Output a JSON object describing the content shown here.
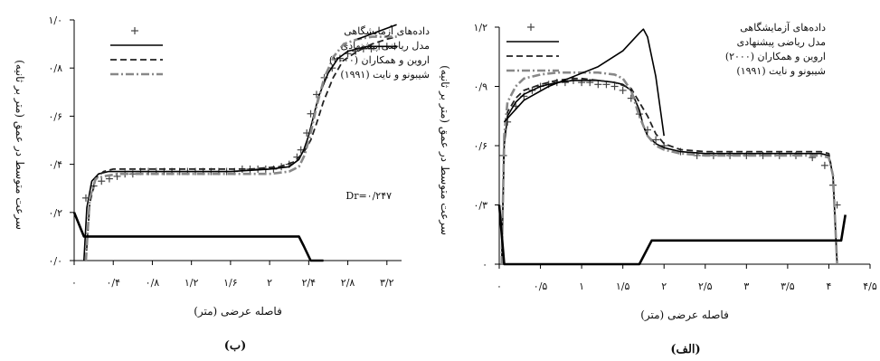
{
  "chart_data": [
    {
      "panel_label": "(ب)",
      "type": "line",
      "xlabel": "فاصله عرضی (متر)",
      "ylabel": "سرعت متوسط در عمق (متر بر ثانیه)",
      "xlim": [
        0,
        3.35
      ],
      "ylim": [
        0,
        1.0
      ],
      "x_ticks": [
        0,
        0.4,
        0.8,
        1.2,
        1.6,
        2.0,
        2.4,
        2.8,
        3.2
      ],
      "x_tick_labels": [
        "۰",
        "۰/۴",
        "۰/۸",
        "۱/۲",
        "۱/۶",
        "۲",
        "۲/۴",
        "۲/۸",
        "۳/۲"
      ],
      "y_ticks": [
        0,
        0.2,
        0.4,
        0.6,
        0.8,
        1.0
      ],
      "y_tick_labels": [
        "۰/۰",
        "۰/۲",
        "۰/۴",
        "۰/۶",
        "۰/۸",
        "۱/۰"
      ],
      "annotation": "Dr=۰/۲۴۷",
      "legend_position": "top-right",
      "series": [
        {
          "name": "داده‌های آزمایشگاهی",
          "style": "marker",
          "color": "#444444",
          "x": [
            0.12,
            0.2,
            0.28,
            0.36,
            0.44,
            0.52,
            0.6,
            0.68,
            0.76,
            0.84,
            0.92,
            1.0,
            1.08,
            1.16,
            1.24,
            1.32,
            1.4,
            1.48,
            1.56,
            1.64,
            1.72,
            1.8,
            1.88,
            1.96,
            2.04,
            2.12,
            2.2,
            2.28,
            2.32,
            2.38,
            2.42,
            2.48,
            2.56,
            2.64,
            2.72,
            2.8,
            2.88,
            2.96,
            3.04,
            3.12,
            3.2,
            3.28
          ],
          "y": [
            0.26,
            0.31,
            0.33,
            0.34,
            0.35,
            0.36,
            0.36,
            0.37,
            0.37,
            0.37,
            0.37,
            0.37,
            0.37,
            0.37,
            0.37,
            0.37,
            0.37,
            0.37,
            0.37,
            0.37,
            0.38,
            0.38,
            0.38,
            0.38,
            0.38,
            0.39,
            0.4,
            0.43,
            0.46,
            0.53,
            0.61,
            0.69,
            0.76,
            0.8,
            0.84,
            0.86,
            0.87,
            0.88,
            0.88,
            0.89,
            0.89,
            0.89
          ]
        },
        {
          "name": "مدل ریاضی پیشنهادی",
          "style": "solid",
          "color": "#000000",
          "x": [
            0.1,
            0.13,
            0.18,
            0.25,
            0.35,
            0.5,
            0.8,
            1.2,
            1.6,
            2.0,
            2.2,
            2.3,
            2.35,
            2.4,
            2.45,
            2.5,
            2.6,
            2.7,
            2.8,
            2.9,
            3.0,
            3.1,
            3.2,
            3.3
          ],
          "y": [
            0.0,
            0.22,
            0.33,
            0.36,
            0.37,
            0.37,
            0.37,
            0.37,
            0.37,
            0.38,
            0.39,
            0.42,
            0.46,
            0.52,
            0.6,
            0.68,
            0.78,
            0.84,
            0.87,
            0.88,
            0.89,
            0.89,
            0.89,
            0.89
          ]
        },
        {
          "name": "اروین و همکاران (۲۰۰۰)",
          "style": "dashed",
          "color": "#222222",
          "x": [
            0.12,
            0.16,
            0.22,
            0.3,
            0.4,
            0.6,
            1.0,
            1.4,
            1.8,
            2.1,
            2.25,
            2.35,
            2.42,
            2.48,
            2.55,
            2.65,
            2.75,
            2.9,
            3.05,
            3.2,
            3.3
          ],
          "y": [
            0.0,
            0.24,
            0.34,
            0.37,
            0.38,
            0.38,
            0.38,
            0.38,
            0.38,
            0.39,
            0.41,
            0.45,
            0.5,
            0.57,
            0.66,
            0.76,
            0.83,
            0.87,
            0.9,
            0.92,
            0.93
          ]
        },
        {
          "name": "شیبونو و نایت (۱۹۹۱)",
          "style": "dash-dot",
          "color": "#888888",
          "x": [
            0.12,
            0.16,
            0.22,
            0.3,
            0.45,
            0.8,
            1.2,
            1.6,
            2.0,
            2.2,
            2.3,
            2.36,
            2.42,
            2.48,
            2.56,
            2.66,
            2.76,
            2.9,
            3.05,
            3.2,
            3.3
          ],
          "y": [
            0.0,
            0.26,
            0.34,
            0.35,
            0.36,
            0.36,
            0.36,
            0.36,
            0.36,
            0.37,
            0.39,
            0.44,
            0.53,
            0.64,
            0.76,
            0.85,
            0.9,
            0.92,
            0.93,
            0.93,
            0.93
          ]
        },
        {
          "name": "",
          "style": "solid-bold",
          "color": "#000000",
          "x": [
            0.0,
            0.1,
            0.12,
            2.3,
            2.35,
            2.42,
            2.55
          ],
          "y": [
            0.2,
            0.1,
            0.1,
            0.1,
            0.06,
            0.0,
            0.0
          ]
        },
        {
          "name": "",
          "style": "solid",
          "color": "#000000",
          "x": [
            2.9,
            3.1,
            3.3
          ],
          "y": [
            0.92,
            0.95,
            0.98
          ]
        }
      ]
    },
    {
      "panel_label": "(الف)",
      "type": "line",
      "xlabel": "فاصله عرضی (متر)",
      "ylabel": "سرعت متوسط در عمق (متر بر ثانیه)",
      "xlim": [
        0,
        4.5
      ],
      "ylim": [
        0,
        1.2
      ],
      "x_ticks": [
        0,
        0.5,
        1.0,
        1.5,
        2.0,
        2.5,
        3.0,
        3.5,
        4.0,
        4.5
      ],
      "x_tick_labels": [
        "۰",
        "۰/۵",
        "۱",
        "۱/۵",
        "۲",
        "۲/۵",
        "۳",
        "۳/۵",
        "۴",
        "۴/۵"
      ],
      "y_ticks": [
        0,
        0.3,
        0.6,
        0.9,
        1.2
      ],
      "y_tick_labels": [
        "۰",
        "۰/۳",
        "۰/۶",
        "۰/۹",
        "۱/۲"
      ],
      "legend_position": "top-right",
      "series": [
        {
          "name": "داده‌های آزمایشگاهی",
          "style": "marker",
          "color": "#444444",
          "x": [
            0.05,
            0.1,
            0.2,
            0.3,
            0.4,
            0.5,
            0.6,
            0.7,
            0.8,
            0.9,
            1.0,
            1.1,
            1.2,
            1.3,
            1.4,
            1.5,
            1.6,
            1.7,
            1.8,
            1.9,
            2.0,
            2.2,
            2.4,
            2.6,
            2.8,
            3.0,
            3.2,
            3.4,
            3.6,
            3.8,
            3.95,
            4.05,
            4.1
          ],
          "y": [
            0.55,
            0.72,
            0.8,
            0.85,
            0.88,
            0.9,
            0.91,
            0.92,
            0.92,
            0.93,
            0.92,
            0.92,
            0.91,
            0.91,
            0.9,
            0.88,
            0.84,
            0.76,
            0.68,
            0.63,
            0.6,
            0.57,
            0.55,
            0.55,
            0.55,
            0.55,
            0.55,
            0.55,
            0.55,
            0.54,
            0.5,
            0.4,
            0.3
          ]
        },
        {
          "name": "مدل ریاضی پیشنهادی",
          "style": "solid",
          "color": "#000000",
          "x": [
            0.03,
            0.06,
            0.1,
            0.2,
            0.3,
            0.5,
            0.7,
            0.9,
            1.0,
            1.2,
            1.4,
            1.5,
            1.6,
            1.7,
            1.75,
            1.8,
            1.9,
            2.0,
            2.2,
            2.5,
            3.0,
            3.5,
            3.9,
            4.0,
            4.05,
            4.1
          ],
          "y": [
            0.0,
            0.6,
            0.75,
            0.82,
            0.86,
            0.9,
            0.92,
            0.93,
            0.93,
            0.93,
            0.92,
            0.91,
            0.88,
            0.78,
            0.7,
            0.65,
            0.61,
            0.59,
            0.57,
            0.56,
            0.56,
            0.56,
            0.56,
            0.55,
            0.45,
            0.0
          ]
        },
        {
          "name": "اروین و همکاران (۲۰۰۰)",
          "style": "dashed",
          "color": "#222222",
          "x": [
            0.03,
            0.06,
            0.1,
            0.2,
            0.3,
            0.5,
            0.7,
            0.9,
            1.0,
            1.2,
            1.4,
            1.6,
            1.8,
            1.9,
            2.0,
            2.2,
            2.5,
            3.0,
            3.5,
            3.9,
            4.0,
            4.05,
            4.1
          ],
          "y": [
            0.0,
            0.62,
            0.77,
            0.84,
            0.88,
            0.91,
            0.93,
            0.94,
            0.94,
            0.93,
            0.92,
            0.89,
            0.75,
            0.66,
            0.61,
            0.58,
            0.57,
            0.57,
            0.57,
            0.57,
            0.56,
            0.45,
            0.0
          ]
        },
        {
          "name": "شیبونو و نایت (۱۹۹۱)",
          "style": "dash-dot",
          "color": "#888888",
          "x": [
            0.03,
            0.06,
            0.1,
            0.2,
            0.3,
            0.5,
            0.7,
            0.9,
            1.0,
            1.2,
            1.4,
            1.5,
            1.6,
            1.7,
            1.8,
            1.9,
            2.0,
            2.2,
            2.5,
            3.0,
            3.5,
            3.9,
            4.0,
            4.05,
            4.1
          ],
          "y": [
            0.0,
            0.65,
            0.82,
            0.9,
            0.94,
            0.96,
            0.97,
            0.97,
            0.97,
            0.97,
            0.96,
            0.94,
            0.88,
            0.75,
            0.65,
            0.6,
            0.58,
            0.56,
            0.55,
            0.55,
            0.55,
            0.55,
            0.54,
            0.45,
            0.0
          ]
        },
        {
          "name": "",
          "style": "solid",
          "color": "#000000",
          "x": [
            0.06,
            0.3,
            0.6,
            0.9,
            1.2,
            1.5,
            1.7,
            1.75,
            1.8,
            1.9,
            2.0
          ],
          "y": [
            0.72,
            0.83,
            0.9,
            0.95,
            1.0,
            1.08,
            1.17,
            1.19,
            1.15,
            0.95,
            0.65
          ]
        },
        {
          "name": "",
          "style": "solid-bold",
          "color": "#000000",
          "x": [
            0.0,
            0.06,
            0.1,
            1.7,
            1.85,
            4.05,
            4.15,
            4.2
          ],
          "y": [
            0.3,
            0.0,
            0.0,
            0.0,
            0.12,
            0.12,
            0.12,
            0.25
          ]
        }
      ]
    }
  ]
}
